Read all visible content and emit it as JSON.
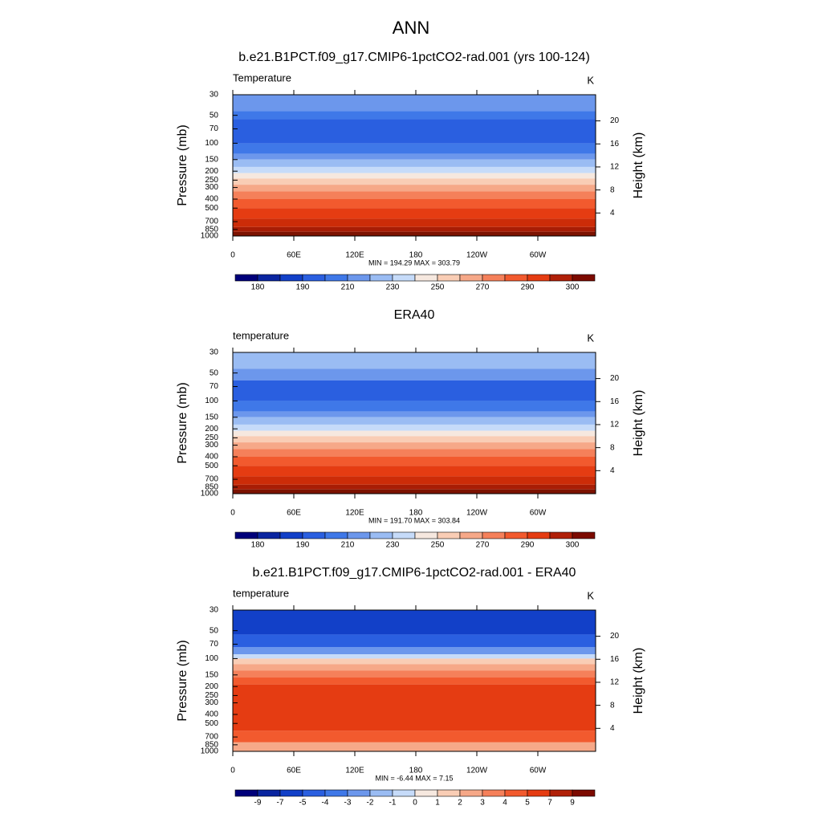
{
  "title": "ANN",
  "chart_data": [
    {
      "type": "contour",
      "title": "b.e21.B1PCT.f09_g17.CMIP6-1pctCO2-rad.001 (yrs 100-124)",
      "label_left": "Temperature",
      "label_right": "K",
      "ylabel": "Pressure (mb)",
      "y2label": "Height (km)",
      "yscale": "log",
      "ylim": [
        30,
        1000
      ],
      "yticks": [
        30,
        50,
        70,
        100,
        150,
        200,
        250,
        300,
        400,
        500,
        700,
        850,
        1000
      ],
      "y2ticks": [
        4,
        8,
        12,
        16,
        20
      ],
      "xlim": [
        0,
        360
      ],
      "xticks": [
        0,
        {
          "value": 60,
          "label": "60E"
        },
        {
          "value": 120,
          "label": "120E"
        },
        180,
        {
          "value": 240,
          "label": "120W"
        },
        {
          "value": 300,
          "label": "60W"
        }
      ],
      "levels": [
        30,
        45,
        55,
        100,
        130,
        150,
        180,
        210,
        240,
        280,
        330,
        400,
        500,
        650,
        800,
        900,
        1000
      ],
      "colors": [
        "#6c97ec",
        "#3f78e8",
        "#2a5fe0",
        "#3f78e8",
        "#6c97ec",
        "#9abcf3",
        "#c6dbf9",
        "#f6e8df",
        "#f9cdb5",
        "#f6a888",
        "#f5805a",
        "#f25a2e",
        "#e53c12",
        "#cc2c08",
        "#a81d05",
        "#7c1200"
      ],
      "stat_text": "MIN = 194.29  MAX = 303.79",
      "colorbar": {
        "colors": [
          "#00007a",
          "#0a25a0",
          "#1240c8",
          "#2a5fe0",
          "#3f78e8",
          "#6c97ec",
          "#9abcf3",
          "#c6dbf9",
          "#f6e8df",
          "#f9cdb5",
          "#f6a888",
          "#f5805a",
          "#f25a2e",
          "#e53c12",
          "#b02008",
          "#7c0a00"
        ],
        "labels": [
          180,
          190,
          210,
          230,
          250,
          270,
          290,
          300
        ]
      }
    },
    {
      "type": "contour",
      "title": "ERA40",
      "label_left": "temperature",
      "label_right": "K",
      "ylabel": "Pressure (mb)",
      "y2label": "Height (km)",
      "yscale": "log",
      "ylim": [
        30,
        1000
      ],
      "yticks": [
        30,
        50,
        70,
        100,
        150,
        200,
        250,
        300,
        400,
        500,
        700,
        850,
        1000
      ],
      "y2ticks": [
        4,
        8,
        12,
        16,
        20
      ],
      "xlim": [
        0,
        360
      ],
      "xticks": [
        0,
        {
          "value": 60,
          "label": "60E"
        },
        {
          "value": 120,
          "label": "120E"
        },
        180,
        {
          "value": 240,
          "label": "120W"
        },
        {
          "value": 300,
          "label": "60W"
        }
      ],
      "levels": [
        30,
        45,
        60,
        100,
        130,
        150,
        180,
        210,
        240,
        280,
        330,
        400,
        500,
        650,
        800,
        900,
        1000
      ],
      "colors": [
        "#9abcf3",
        "#6c97ec",
        "#2a5fe0",
        "#3f78e8",
        "#6c97ec",
        "#9abcf3",
        "#c6dbf9",
        "#f6e8df",
        "#f9cdb5",
        "#f6a888",
        "#f5805a",
        "#f25a2e",
        "#e53c12",
        "#cc2c08",
        "#a81d05",
        "#7c1200"
      ],
      "stat_text": "MIN = 191.70  MAX = 303.84",
      "colorbar": {
        "colors": [
          "#00007a",
          "#0a25a0",
          "#1240c8",
          "#2a5fe0",
          "#3f78e8",
          "#6c97ec",
          "#9abcf3",
          "#c6dbf9",
          "#f6e8df",
          "#f9cdb5",
          "#f6a888",
          "#f5805a",
          "#f25a2e",
          "#e53c12",
          "#b02008",
          "#7c0a00"
        ],
        "labels": [
          180,
          190,
          210,
          230,
          250,
          270,
          290,
          300
        ]
      }
    },
    {
      "type": "contour",
      "title": "b.e21.B1PCT.f09_g17.CMIP6-1pctCO2-rad.001 - ERA40",
      "label_left": "temperature",
      "label_right": "K",
      "ylabel": "Pressure (mb)",
      "y2label": "Height (km)",
      "yscale": "log",
      "ylim": [
        30,
        1000
      ],
      "yticks": [
        30,
        50,
        70,
        100,
        150,
        200,
        250,
        300,
        400,
        500,
        700,
        850,
        1000
      ],
      "y2ticks": [
        4,
        8,
        12,
        16,
        20
      ],
      "xlim": [
        0,
        360
      ],
      "xticks": [
        0,
        {
          "value": 60,
          "label": "60E"
        },
        {
          "value": 120,
          "label": "120E"
        },
        180,
        {
          "value": 240,
          "label": "120W"
        },
        {
          "value": 300,
          "label": "60W"
        }
      ],
      "levels": [
        30,
        55,
        75,
        90,
        100,
        115,
        135,
        160,
        190,
        600,
        800,
        1000
      ],
      "colors": [
        "#1240c8",
        "#2a5fe0",
        "#6c97ec",
        "#c6dbf9",
        "#f9cdb5",
        "#f6a888",
        "#f5805a",
        "#f25a2e",
        "#e53c12",
        "#f25a2e",
        "#f6a888"
      ],
      "stat_text": "MIN = -6.44  MAX =   7.15",
      "colorbar": {
        "colors": [
          "#00007a",
          "#0a25a0",
          "#1240c8",
          "#2a5fe0",
          "#3f78e8",
          "#6c97ec",
          "#9abcf3",
          "#c6dbf9",
          "#f6e8df",
          "#f9cdb5",
          "#f6a888",
          "#f5805a",
          "#f25a2e",
          "#e53c12",
          "#b02008",
          "#7c0a00"
        ],
        "labels": [
          -9,
          -7,
          -5,
          -4,
          -3,
          -2,
          -1,
          0,
          1,
          2,
          3,
          4,
          5,
          7,
          9
        ]
      }
    }
  ]
}
